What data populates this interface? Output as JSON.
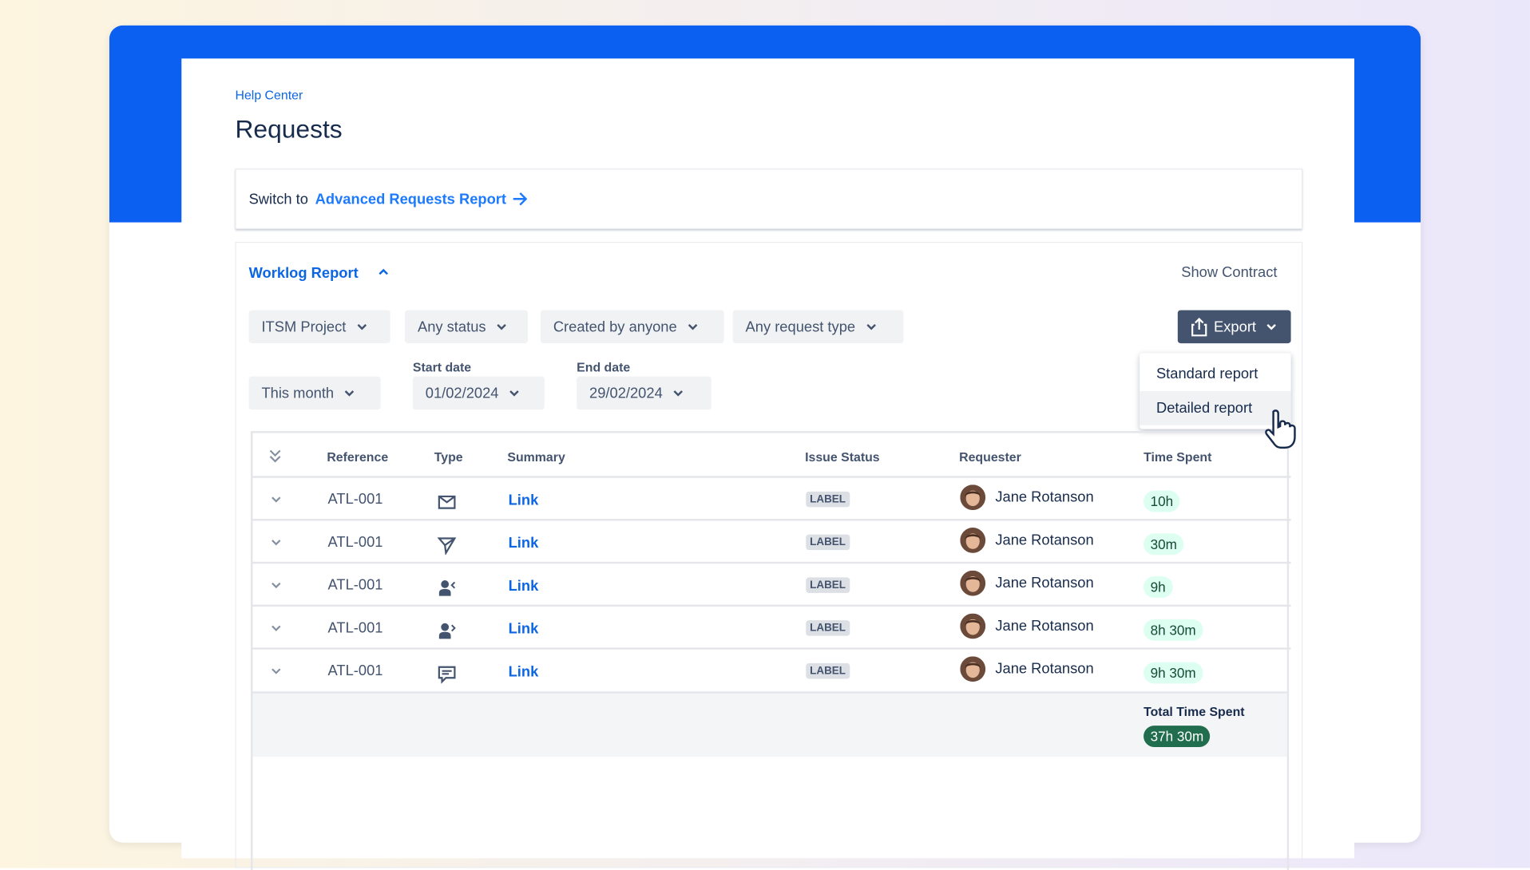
{
  "breadcrumb": "Help Center",
  "title": "Requests",
  "switch": {
    "prefix": "Switch to",
    "link": "Advanced Requests Report"
  },
  "report": {
    "title": "Worklog Report",
    "show_contract": "Show Contract"
  },
  "filters": [
    "ITSM Project",
    "Any status",
    "Created by anyone",
    "Any request type"
  ],
  "period": "This month",
  "start_date": {
    "label": "Start date",
    "value": "01/02/2024"
  },
  "end_date": {
    "label": "End date",
    "value": "29/02/2024"
  },
  "export": {
    "label": "Export",
    "menu": [
      "Standard report",
      "Detailed report"
    ]
  },
  "table": {
    "headers": [
      "Reference",
      "Type",
      "Summary",
      "Issue Status",
      "Requester",
      "Time Spent"
    ],
    "rows": [
      [
        "ATL-001",
        "Link",
        "LABEL",
        "Jane Rotanson",
        "10h"
      ],
      [
        "ATL-001",
        "Link",
        "LABEL",
        "Jane Rotanson",
        "30m"
      ],
      [
        "ATL-001",
        "Link",
        "LABEL",
        "Jane Rotanson",
        "9h"
      ],
      [
        "ATL-001",
        "Link",
        "LABEL",
        "Jane Rotanson",
        "8h 30m"
      ],
      [
        "ATL-001",
        "Link",
        "LABEL",
        "Jane Rotanson",
        "9h 30m"
      ]
    ],
    "total_label": "Total Time Spent",
    "total": "37h 30m"
  }
}
